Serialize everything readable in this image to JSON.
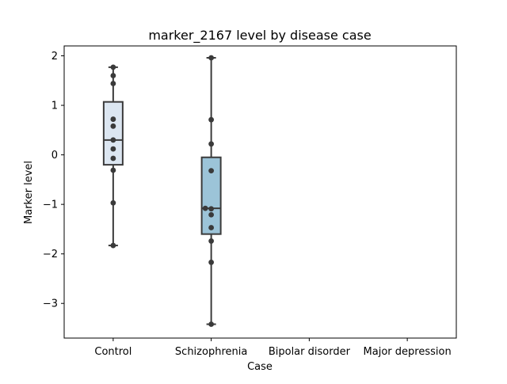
{
  "chart_data": {
    "type": "box",
    "title": "marker_2167 level by disease case",
    "xlabel": "Case",
    "ylabel": "Marker level",
    "categories": [
      "Control",
      "Schizophrenia",
      "Bipolar disorder",
      "Major depression"
    ],
    "ylim": [
      -3.7,
      2.2
    ],
    "yticks": [
      2,
      1,
      0,
      -1,
      -2,
      -3
    ],
    "ytick_labels": [
      "2",
      "1",
      "0",
      "−1",
      "−2",
      "−3"
    ],
    "grid": false,
    "legend": "none",
    "boxes": [
      {
        "category": "Control",
        "q1": -0.2,
        "median": 0.3,
        "q3": 1.07,
        "whisker_low": -1.83,
        "whisker_high": 1.77,
        "color": "#dce6f1"
      },
      {
        "category": "Schizophrenia",
        "q1": -1.6,
        "median": -1.08,
        "q3": -0.05,
        "whisker_low": -3.42,
        "whisker_high": 1.96,
        "color": "#9cc4d8"
      }
    ],
    "points": [
      {
        "category": "Control",
        "values": [
          1.77,
          1.6,
          1.44,
          0.72,
          0.58,
          0.3,
          0.12,
          -0.07,
          -0.31,
          -0.97,
          -1.83
        ],
        "offsets": [
          0,
          0,
          0,
          0,
          0,
          0,
          0,
          0,
          0,
          0,
          0
        ]
      },
      {
        "category": "Schizophrenia",
        "values": [
          1.96,
          0.71,
          0.22,
          -0.32,
          -1.08,
          -1.09,
          -1.21,
          -1.47,
          -1.74,
          -2.17,
          -3.42
        ],
        "offsets": [
          0,
          0,
          0,
          0,
          -0.06,
          0,
          0,
          0,
          0,
          0,
          0
        ]
      }
    ],
    "colors": {
      "box_edge": "#3b3b3b",
      "point": "#3a3a3a"
    }
  }
}
